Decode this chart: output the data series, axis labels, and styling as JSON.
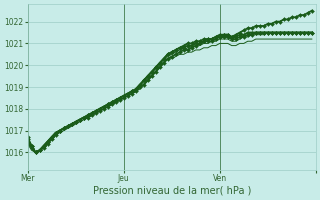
{
  "xlabel": "Pression niveau de la mer( hPa )",
  "background_color": "#c8ece8",
  "grid_color": "#9dcdc6",
  "line_color": "#1a5c1a",
  "ylim": [
    1015.2,
    1022.8
  ],
  "xlim": [
    0,
    72
  ],
  "x_ticks": [
    0,
    24,
    48,
    72
  ],
  "x_tick_labels": [
    "Mer",
    "Jeu",
    "Ven",
    ""
  ],
  "x_vlines": [
    0,
    24,
    48,
    72
  ],
  "series": [
    [
      1016.7,
      1016.3,
      1016.0,
      1016.1,
      1016.2,
      1016.4,
      1016.6,
      1016.8,
      1017.0,
      1017.1,
      1017.2,
      1017.3,
      1017.4,
      1017.5,
      1017.6,
      1017.6,
      1017.7,
      1017.8,
      1017.9,
      1018.0,
      1018.1,
      1018.2,
      1018.3,
      1018.4,
      1018.5,
      1018.6,
      1018.7,
      1018.8,
      1019.0,
      1019.1,
      1019.3,
      1019.5,
      1019.7,
      1019.9,
      1020.1,
      1020.3,
      1020.4,
      1020.5,
      1020.6,
      1020.7,
      1020.7,
      1020.8,
      1020.9,
      1021.0,
      1021.1,
      1021.2,
      1021.2,
      1021.3,
      1021.4,
      1021.4,
      1021.4,
      1021.3,
      1021.4,
      1021.5,
      1021.6,
      1021.7,
      1021.7,
      1021.8,
      1021.8,
      1021.8,
      1021.9,
      1021.9,
      1022.0,
      1022.0,
      1022.1,
      1022.1,
      1022.2,
      1022.2,
      1022.3,
      1022.3,
      1022.4,
      1022.5
    ],
    [
      1016.5,
      1016.2,
      1016.0,
      1016.1,
      1016.3,
      1016.5,
      1016.7,
      1016.9,
      1017.0,
      1017.1,
      1017.2,
      1017.3,
      1017.4,
      1017.5,
      1017.6,
      1017.7,
      1017.8,
      1017.9,
      1018.0,
      1018.1,
      1018.2,
      1018.3,
      1018.4,
      1018.5,
      1018.6,
      1018.7,
      1018.8,
      1018.9,
      1019.0,
      1019.2,
      1019.4,
      1019.6,
      1019.8,
      1020.0,
      1020.2,
      1020.4,
      1020.5,
      1020.6,
      1020.7,
      1020.7,
      1020.8,
      1020.8,
      1020.9,
      1020.9,
      1021.0,
      1021.0,
      1021.1,
      1021.1,
      1021.2,
      1021.2,
      1021.2,
      1021.1,
      1021.1,
      1021.2,
      1021.3,
      1021.3,
      1021.4,
      1021.4,
      1021.4,
      1021.4,
      1021.5,
      1021.5,
      1021.5,
      1021.5,
      1021.5,
      1021.5,
      1021.5,
      1021.5,
      1021.5,
      1021.5,
      1021.5,
      1021.5
    ],
    [
      1016.5,
      1016.2,
      1016.0,
      1016.1,
      1016.3,
      1016.5,
      1016.7,
      1016.9,
      1017.0,
      1017.1,
      1017.2,
      1017.3,
      1017.4,
      1017.5,
      1017.6,
      1017.7,
      1017.8,
      1017.9,
      1018.0,
      1018.1,
      1018.2,
      1018.3,
      1018.4,
      1018.5,
      1018.6,
      1018.7,
      1018.8,
      1018.9,
      1019.1,
      1019.3,
      1019.5,
      1019.7,
      1019.9,
      1020.1,
      1020.3,
      1020.5,
      1020.6,
      1020.7,
      1020.8,
      1020.8,
      1020.9,
      1020.9,
      1021.0,
      1021.0,
      1021.1,
      1021.1,
      1021.1,
      1021.2,
      1021.3,
      1021.3,
      1021.3,
      1021.2,
      1021.2,
      1021.3,
      1021.3,
      1021.4,
      1021.4,
      1021.5,
      1021.5,
      1021.5,
      1021.5,
      1021.5,
      1021.5,
      1021.5,
      1021.5,
      1021.5,
      1021.5,
      1021.5,
      1021.5,
      1021.5,
      1021.5,
      1021.5
    ],
    [
      1016.4,
      1016.1,
      1016.0,
      1016.1,
      1016.3,
      1016.5,
      1016.7,
      1016.8,
      1016.9,
      1017.0,
      1017.1,
      1017.2,
      1017.3,
      1017.4,
      1017.5,
      1017.6,
      1017.7,
      1017.8,
      1017.9,
      1018.0,
      1018.1,
      1018.2,
      1018.3,
      1018.4,
      1018.5,
      1018.6,
      1018.7,
      1018.8,
      1018.9,
      1019.1,
      1019.3,
      1019.5,
      1019.7,
      1019.9,
      1020.1,
      1020.3,
      1020.3,
      1020.4,
      1020.5,
      1020.5,
      1020.6,
      1020.6,
      1020.7,
      1020.7,
      1020.8,
      1020.8,
      1020.9,
      1020.9,
      1021.0,
      1021.0,
      1021.0,
      1020.9,
      1020.9,
      1021.0,
      1021.0,
      1021.1,
      1021.1,
      1021.2,
      1021.2,
      1021.2,
      1021.2,
      1021.2,
      1021.2,
      1021.2,
      1021.2,
      1021.2,
      1021.2,
      1021.2,
      1021.2,
      1021.2,
      1021.2,
      1021.2
    ],
    [
      1016.6,
      1016.3,
      1016.0,
      1016.1,
      1016.3,
      1016.5,
      1016.7,
      1016.9,
      1017.0,
      1017.1,
      1017.2,
      1017.3,
      1017.4,
      1017.5,
      1017.6,
      1017.7,
      1017.8,
      1017.9,
      1018.0,
      1018.1,
      1018.2,
      1018.3,
      1018.4,
      1018.5,
      1018.6,
      1018.7,
      1018.8,
      1018.9,
      1019.1,
      1019.3,
      1019.5,
      1019.7,
      1019.9,
      1020.1,
      1020.3,
      1020.5,
      1020.6,
      1020.7,
      1020.8,
      1020.9,
      1021.0,
      1021.0,
      1021.1,
      1021.1,
      1021.2,
      1021.2,
      1021.2,
      1021.3,
      1021.3,
      1021.4,
      1021.4,
      1021.3,
      1021.3,
      1021.4,
      1021.4,
      1021.5,
      1021.5,
      1021.5,
      1021.5,
      1021.5,
      1021.5,
      1021.5,
      1021.5,
      1021.5,
      1021.5,
      1021.5,
      1021.5,
      1021.5,
      1021.5,
      1021.5,
      1021.5,
      1021.5
    ]
  ],
  "marker_series": [
    0,
    2,
    4
  ],
  "marker": "D",
  "marker_size": 2.0,
  "linewidth_bold": 1.3,
  "linewidth_thin": 0.7,
  "yticks": [
    1016,
    1017,
    1018,
    1019,
    1020,
    1021,
    1022
  ],
  "font_color": "#336633",
  "font_size_tick": 5.5,
  "font_size_label": 7
}
